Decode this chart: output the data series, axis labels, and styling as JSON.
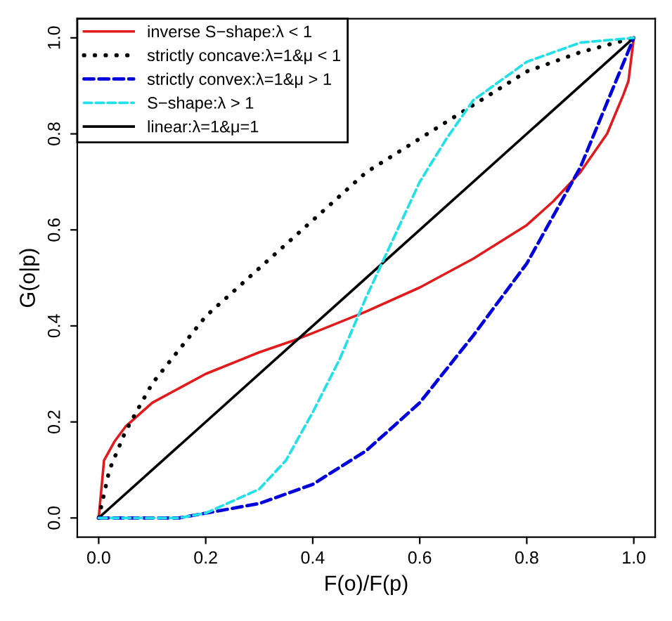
{
  "chart_data": {
    "type": "line",
    "xlabel": "F(o)/F(p)",
    "ylabel": "G(o|p)",
    "xlim": [
      -0.04,
      1.04
    ],
    "ylim": [
      -0.04,
      1.04
    ],
    "xticks": [
      {
        "value": 0,
        "label": "0.0"
      },
      0.2,
      0.4,
      0.6,
      0.8,
      {
        "value": 1,
        "label": "1.0"
      }
    ],
    "yticks": [
      {
        "value": 0,
        "label": "0.0"
      },
      0.2,
      0.4,
      0.6,
      0.8,
      {
        "value": 1,
        "label": "1.0"
      }
    ],
    "grid": false,
    "legend": "top left",
    "marker": "none",
    "series": [
      {
        "name": "inverse S−shape:λ < 1",
        "color": "#e31a1c",
        "line_style": "solid",
        "x": [
          0,
          0.01,
          0.03,
          0.05,
          0.1,
          0.2,
          0.3,
          0.365,
          0.4,
          0.5,
          0.6,
          0.7,
          0.8,
          0.85,
          0.9,
          0.95,
          0.98,
          0.99,
          1
        ],
        "values": [
          0,
          0.12,
          0.16,
          0.19,
          0.24,
          0.3,
          0.345,
          0.37,
          0.385,
          0.43,
          0.48,
          0.54,
          0.61,
          0.66,
          0.72,
          0.8,
          0.88,
          0.91,
          1
        ]
      },
      {
        "name": "strictly concave:λ=1&μ < 1",
        "color": "#000000",
        "line_style": "dotted",
        "x": [
          0,
          0.02,
          0.05,
          0.1,
          0.2,
          0.3,
          0.4,
          0.5,
          0.6,
          0.7,
          0.8,
          0.9,
          1
        ],
        "values": [
          0,
          0.1,
          0.18,
          0.28,
          0.42,
          0.52,
          0.62,
          0.72,
          0.79,
          0.86,
          0.93,
          0.97,
          1
        ]
      },
      {
        "name": "strictly convex:λ=1&μ > 1",
        "color": "#0000dd",
        "line_style": "dashed",
        "x": [
          0,
          0.15,
          0.2,
          0.3,
          0.4,
          0.5,
          0.6,
          0.7,
          0.8,
          0.9,
          1
        ],
        "values": [
          0,
          0,
          0.01,
          0.03,
          0.07,
          0.14,
          0.24,
          0.38,
          0.53,
          0.73,
          1
        ]
      },
      {
        "name": "S−shape:λ > 1",
        "color": "#22e0e8",
        "line_style": "dashed",
        "x": [
          0,
          0.15,
          0.2,
          0.3,
          0.35,
          0.4,
          0.45,
          0.5,
          0.55,
          0.6,
          0.65,
          0.7,
          0.8,
          0.9,
          1
        ],
        "values": [
          0,
          0,
          0.01,
          0.06,
          0.12,
          0.22,
          0.33,
          0.46,
          0.58,
          0.7,
          0.79,
          0.87,
          0.95,
          0.99,
          1
        ]
      },
      {
        "name": "linear:λ=1&μ=1",
        "color": "#000000",
        "line_style": "solid",
        "x": [
          0,
          1
        ],
        "values": [
          0,
          1
        ]
      }
    ]
  }
}
